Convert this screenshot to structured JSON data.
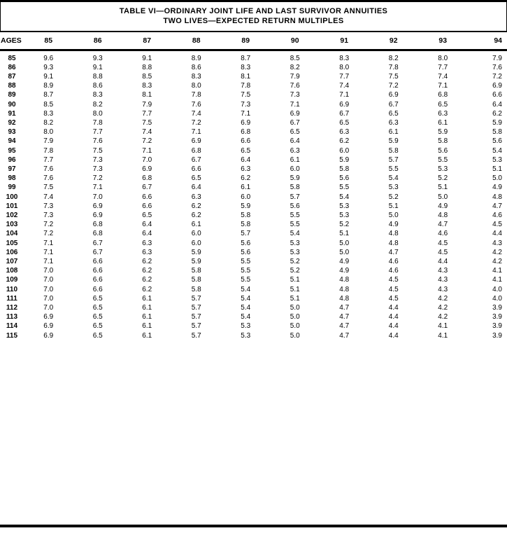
{
  "title": {
    "line1": "TABLE VI—ORDINARY JOINT LIFE AND LAST SURVIVOR ANNUITIES",
    "line2": "TWO LIVES—EXPECTED RETURN MULTIPLES"
  },
  "chart_data": {
    "type": "table",
    "title": "TABLE VI—ORDINARY JOINT LIFE AND LAST SURVIVOR ANNUITIES",
    "subtitle": "TWO LIVES—EXPECTED RETURN MULTIPLES",
    "columns": [
      "AGES",
      "85",
      "86",
      "87",
      "88",
      "89",
      "90",
      "91",
      "92",
      "93",
      "94"
    ],
    "rows": [
      [
        "85",
        "9.6",
        "9.3",
        "9.1",
        "8.9",
        "8.7",
        "8.5",
        "8.3",
        "8.2",
        "8.0",
        "7.9"
      ],
      [
        "86",
        "9.3",
        "9.1",
        "8.8",
        "8.6",
        "8.3",
        "8.2",
        "8.0",
        "7.8",
        "7.7",
        "7.6"
      ],
      [
        "87",
        "9.1",
        "8.8",
        "8.5",
        "8.3",
        "8.1",
        "7.9",
        "7.7",
        "7.5",
        "7.4",
        "7.2"
      ],
      [
        "88",
        "8.9",
        "8.6",
        "8.3",
        "8.0",
        "7.8",
        "7.6",
        "7.4",
        "7.2",
        "7.1",
        "6.9"
      ],
      [
        "89",
        "8.7",
        "8.3",
        "8.1",
        "7.8",
        "7.5",
        "7.3",
        "7.1",
        "6.9",
        "6.8",
        "6.6"
      ],
      [
        "90",
        "8.5",
        "8.2",
        "7.9",
        "7.6",
        "7.3",
        "7.1",
        "6.9",
        "6.7",
        "6.5",
        "6.4"
      ],
      [
        "91",
        "8.3",
        "8.0",
        "7.7",
        "7.4",
        "7.1",
        "6.9",
        "6.7",
        "6.5",
        "6.3",
        "6.2"
      ],
      [
        "92",
        "8.2",
        "7.8",
        "7.5",
        "7.2",
        "6.9",
        "6.7",
        "6.5",
        "6.3",
        "6.1",
        "5.9"
      ],
      [
        "93",
        "8.0",
        "7.7",
        "7.4",
        "7.1",
        "6.8",
        "6.5",
        "6.3",
        "6.1",
        "5.9",
        "5.8"
      ],
      [
        "94",
        "7.9",
        "7.6",
        "7.2",
        "6.9",
        "6.6",
        "6.4",
        "6.2",
        "5.9",
        "5.8",
        "5.6"
      ],
      [
        "95",
        "7.8",
        "7.5",
        "7.1",
        "6.8",
        "6.5",
        "6.3",
        "6.0",
        "5.8",
        "5.6",
        "5.4"
      ],
      [
        "96",
        "7.7",
        "7.3",
        "7.0",
        "6.7",
        "6.4",
        "6.1",
        "5.9",
        "5.7",
        "5.5",
        "5.3"
      ],
      [
        "97",
        "7.6",
        "7.3",
        "6.9",
        "6.6",
        "6.3",
        "6.0",
        "5.8",
        "5.5",
        "5.3",
        "5.1"
      ],
      [
        "98",
        "7.6",
        "7.2",
        "6.8",
        "6.5",
        "6.2",
        "5.9",
        "5.6",
        "5.4",
        "5.2",
        "5.0"
      ],
      [
        "99",
        "7.5",
        "7.1",
        "6.7",
        "6.4",
        "6.1",
        "5.8",
        "5.5",
        "5.3",
        "5.1",
        "4.9"
      ],
      [
        "100",
        "7.4",
        "7.0",
        "6.6",
        "6.3",
        "6.0",
        "5.7",
        "5.4",
        "5.2",
        "5.0",
        "4.8"
      ],
      [
        "101",
        "7.3",
        "6.9",
        "6.6",
        "6.2",
        "5.9",
        "5.6",
        "5.3",
        "5.1",
        "4.9",
        "4.7"
      ],
      [
        "102",
        "7.3",
        "6.9",
        "6.5",
        "6.2",
        "5.8",
        "5.5",
        "5.3",
        "5.0",
        "4.8",
        "4.6"
      ],
      [
        "103",
        "7.2",
        "6.8",
        "6.4",
        "6.1",
        "5.8",
        "5.5",
        "5.2",
        "4.9",
        "4.7",
        "4.5"
      ],
      [
        "104",
        "7.2",
        "6.8",
        "6.4",
        "6.0",
        "5.7",
        "5.4",
        "5.1",
        "4.8",
        "4.6",
        "4.4"
      ],
      [
        "105",
        "7.1",
        "6.7",
        "6.3",
        "6.0",
        "5.6",
        "5.3",
        "5.0",
        "4.8",
        "4.5",
        "4.3"
      ],
      [
        "106",
        "7.1",
        "6.7",
        "6.3",
        "5.9",
        "5.6",
        "5.3",
        "5.0",
        "4.7",
        "4.5",
        "4.2"
      ],
      [
        "107",
        "7.1",
        "6.6",
        "6.2",
        "5.9",
        "5.5",
        "5.2",
        "4.9",
        "4.6",
        "4.4",
        "4.2"
      ],
      [
        "108",
        "7.0",
        "6.6",
        "6.2",
        "5.8",
        "5.5",
        "5.2",
        "4.9",
        "4.6",
        "4.3",
        "4.1"
      ],
      [
        "109",
        "7.0",
        "6.6",
        "6.2",
        "5.8",
        "5.5",
        "5.1",
        "4.8",
        "4.5",
        "4.3",
        "4.1"
      ],
      [
        "110",
        "7.0",
        "6.6",
        "6.2",
        "5.8",
        "5.4",
        "5.1",
        "4.8",
        "4.5",
        "4.3",
        "4.0"
      ],
      [
        "111",
        "7.0",
        "6.5",
        "6.1",
        "5.7",
        "5.4",
        "5.1",
        "4.8",
        "4.5",
        "4.2",
        "4.0"
      ],
      [
        "112",
        "7.0",
        "6.5",
        "6.1",
        "5.7",
        "5.4",
        "5.0",
        "4.7",
        "4.4",
        "4.2",
        "3.9"
      ],
      [
        "113",
        "6.9",
        "6.5",
        "6.1",
        "5.7",
        "5.4",
        "5.0",
        "4.7",
        "4.4",
        "4.2",
        "3.9"
      ],
      [
        "114",
        "6.9",
        "6.5",
        "6.1",
        "5.7",
        "5.3",
        "5.0",
        "4.7",
        "4.4",
        "4.1",
        "3.9"
      ],
      [
        "115",
        "6.9",
        "6.5",
        "6.1",
        "5.7",
        "5.3",
        "5.0",
        "4.7",
        "4.4",
        "4.1",
        "3.9"
      ]
    ]
  }
}
